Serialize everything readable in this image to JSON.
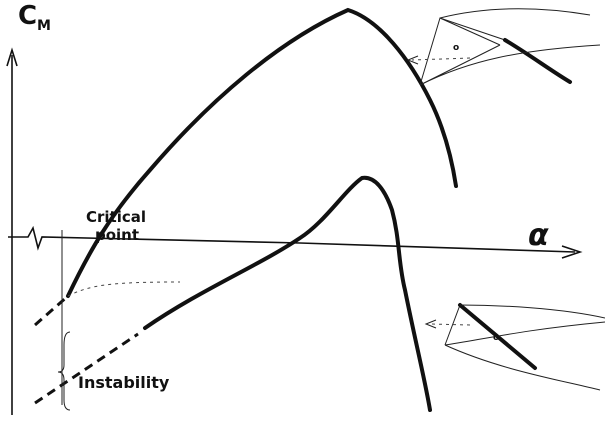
{
  "axes": {
    "y_label": "C",
    "y_label_sub": "M",
    "x_label": "α"
  },
  "annotations": {
    "critical_point": [
      "Critical",
      "point"
    ],
    "instability": "Instability"
  }
}
